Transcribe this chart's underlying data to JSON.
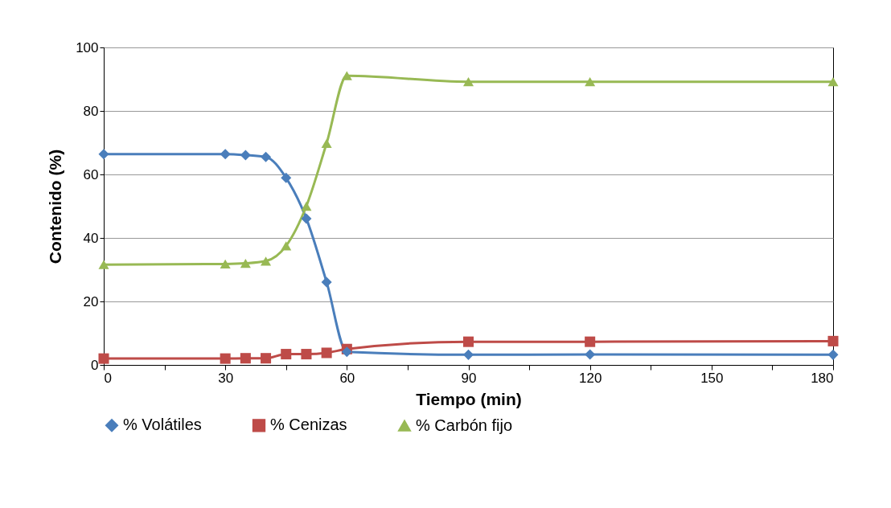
{
  "chart_data": {
    "type": "line",
    "xlabel": "Tiempo (min)",
    "ylabel": "Contenido (%)",
    "x": [
      0,
      30,
      35,
      40,
      45,
      50,
      55,
      60,
      90,
      120,
      180
    ],
    "xlim": [
      0,
      180
    ],
    "xticks": [
      0,
      {
        "value": 15,
        "label": null
      },
      30,
      {
        "value": 45,
        "label": null
      },
      60,
      {
        "value": 75,
        "label": null
      },
      90,
      {
        "value": 105,
        "label": null
      },
      120,
      {
        "value": 135,
        "label": null
      },
      150,
      {
        "value": 165,
        "label": null
      },
      180
    ],
    "ylim": [
      0,
      100
    ],
    "yticks": [
      0,
      20,
      40,
      60,
      80,
      100
    ],
    "grid": "y",
    "legend": "bottom",
    "line_style": "solid",
    "series": [
      {
        "name": "% Volátiles",
        "color": "#4a7ebb",
        "marker": "diamond",
        "values": [
          66.4,
          66.4,
          66.1,
          65.5,
          58.9,
          46.1,
          26.1,
          4.1,
          3.2,
          3.3,
          3.2
        ]
      },
      {
        "name": "% Cenizas",
        "color": "#be4b48",
        "marker": "square",
        "values": [
          2.0,
          2.0,
          2.1,
          2.1,
          3.4,
          3.4,
          3.8,
          5.0,
          7.3,
          7.3,
          7.5
        ]
      },
      {
        "name": "% Carbón fijo",
        "color": "#98b954",
        "marker": "triangle",
        "values": [
          31.6,
          31.8,
          32.0,
          32.7,
          37.5,
          50.0,
          69.8,
          91.1,
          89.2,
          89.2,
          89.2
        ]
      }
    ]
  }
}
